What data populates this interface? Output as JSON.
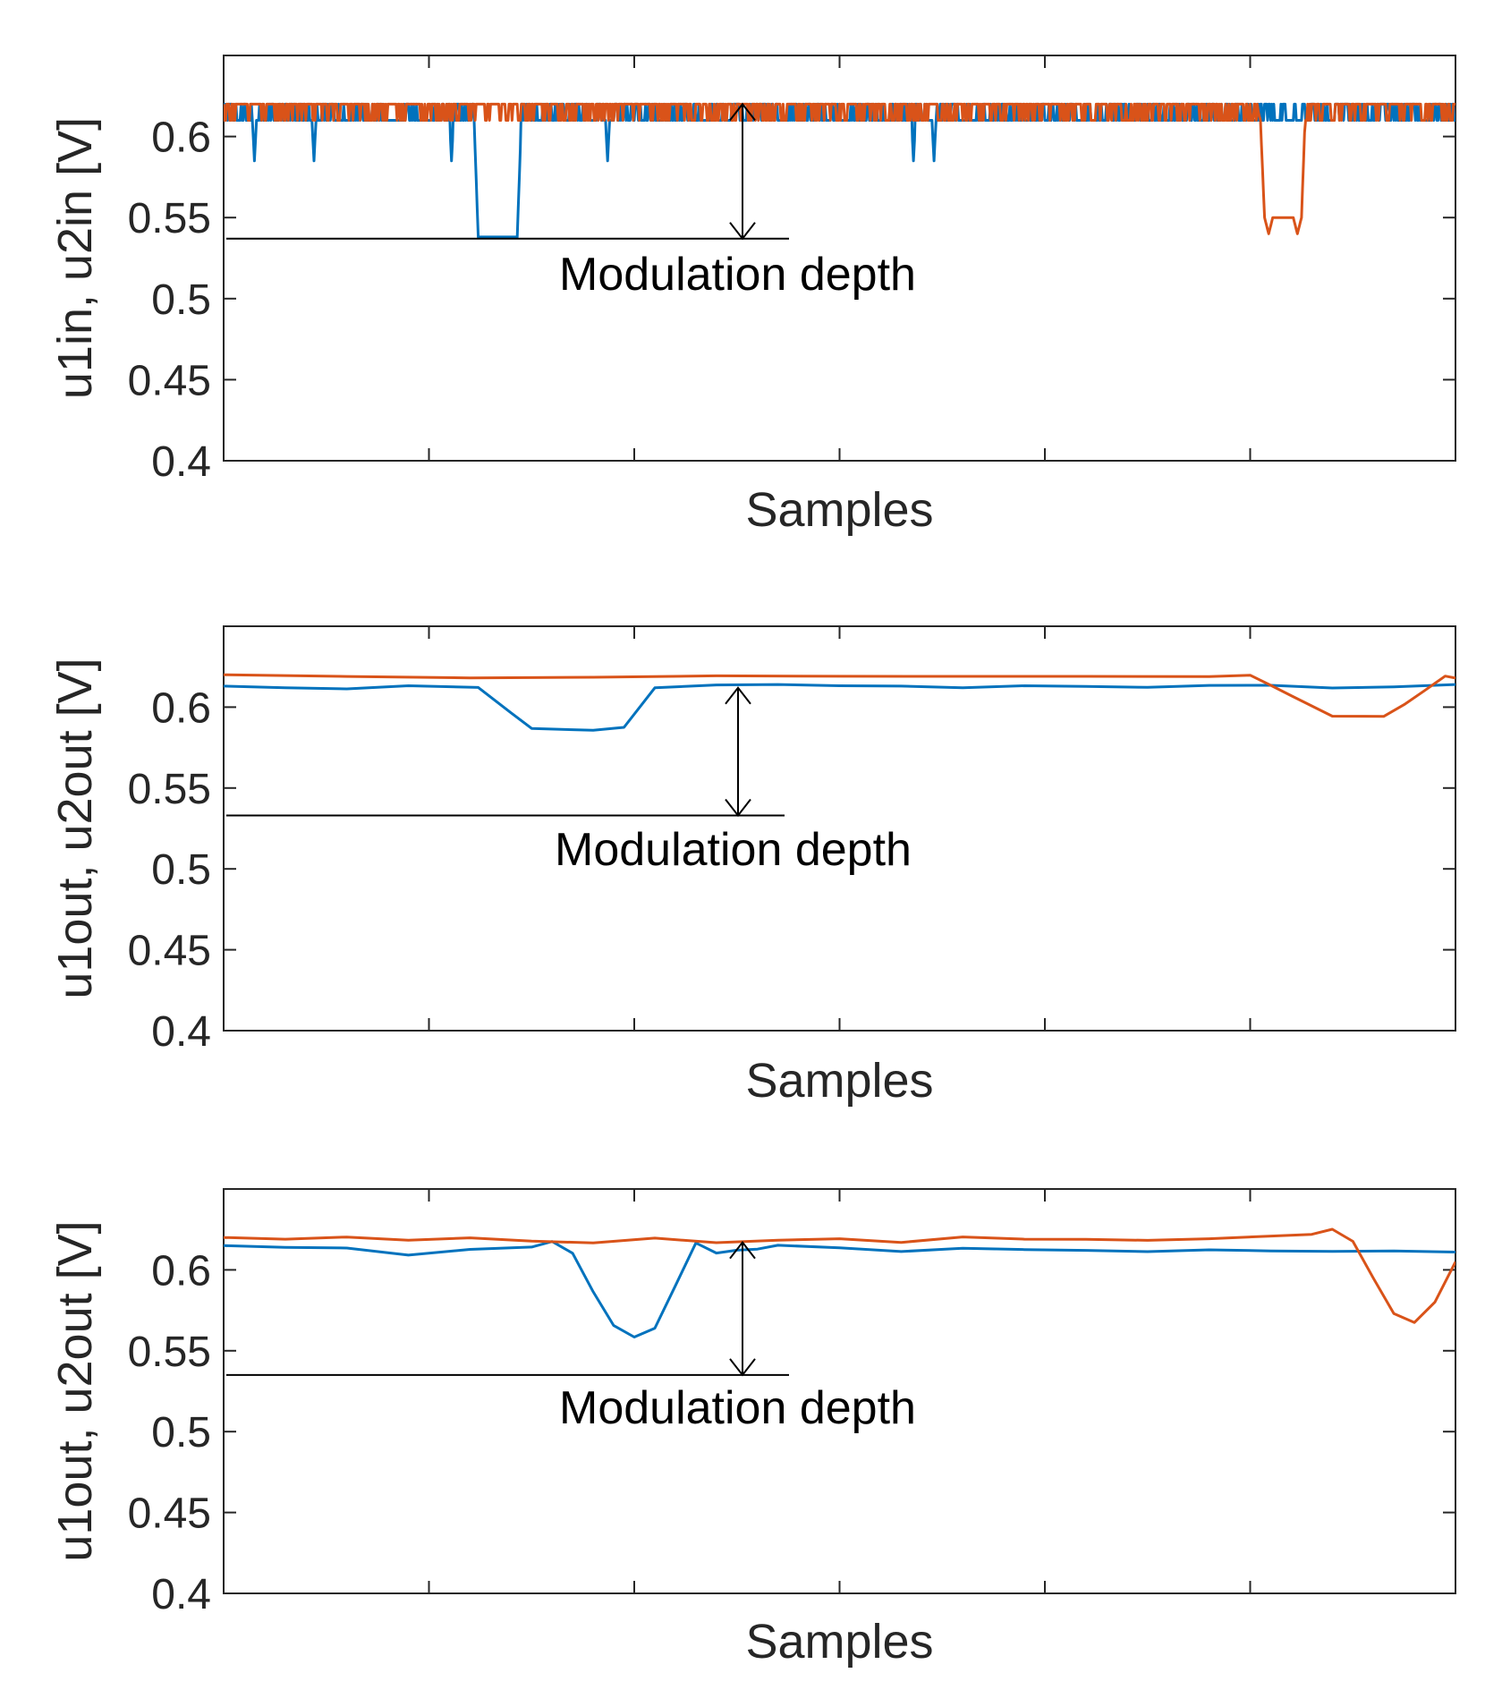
{
  "chart_data": [
    {
      "type": "line",
      "title": "",
      "xlabel": "Samples",
      "ylabel": "u1in, u2in [V]",
      "ylim": [
        0.4,
        0.65
      ],
      "yticks": [
        0.4,
        0.45,
        0.5,
        0.55,
        0.6
      ],
      "ytick_labels": [
        "0.4",
        "0.45",
        "0.5",
        "0.55",
        "0.6"
      ],
      "xlim": [
        0,
        600
      ],
      "xtick_count": 6,
      "grid": false,
      "series": [
        {
          "name": "u1in",
          "color": "#0072BD",
          "style": "digital-noise",
          "x": [
            0,
            14,
            15,
            16,
            43,
            44,
            45,
            110,
            111,
            112,
            122,
            124,
            143,
            145,
            186,
            187,
            188,
            335,
            336,
            337,
            345,
            346,
            347,
            600
          ],
          "y": [
            0.61,
            0.61,
            0.585,
            0.61,
            0.61,
            0.585,
            0.61,
            0.61,
            0.585,
            0.61,
            0.61,
            0.538,
            0.538,
            0.61,
            0.61,
            0.585,
            0.61,
            0.61,
            0.585,
            0.61,
            0.61,
            0.585,
            0.61,
            0.61
          ]
        },
        {
          "name": "u2in",
          "color": "#D95319",
          "style": "digital-noise",
          "x": [
            0,
            503,
            505,
            507,
            509,
            511,
            521,
            523,
            525,
            527,
            600
          ],
          "y": [
            0.62,
            0.62,
            0.61,
            0.55,
            0.54,
            0.55,
            0.55,
            0.54,
            0.55,
            0.62,
            0.62
          ]
        }
      ],
      "annotation": {
        "text": "Modulation depth",
        "level": 0.537,
        "top": 0.62
      }
    },
    {
      "type": "line",
      "title": "",
      "xlabel": "Samples",
      "ylabel": "u1out, u2out [V]",
      "ylim": [
        0.4,
        0.65
      ],
      "yticks": [
        0.4,
        0.45,
        0.5,
        0.55,
        0.6
      ],
      "ytick_labels": [
        "0.4",
        "0.45",
        "0.5",
        "0.55",
        "0.6"
      ],
      "xlim": [
        0,
        600
      ],
      "xtick_count": 6,
      "grid": false,
      "series": [
        {
          "name": "u1out",
          "color": "#0072BD",
          "x": [
            0,
            30,
            60,
            90,
            124,
            140,
            150,
            180,
            195,
            210,
            240,
            270,
            300,
            330,
            360,
            390,
            420,
            450,
            480,
            510,
            540,
            570,
            600
          ],
          "y": [
            0.613,
            0.612,
            0.611,
            0.613,
            0.612,
            0.596,
            0.587,
            0.586,
            0.588,
            0.612,
            0.614,
            0.614,
            0.613,
            0.613,
            0.612,
            0.613,
            0.613,
            0.612,
            0.613,
            0.613,
            0.612,
            0.613,
            0.614
          ]
        },
        {
          "name": "u2out",
          "color": "#D95319",
          "x": [
            0,
            60,
            120,
            180,
            240,
            300,
            360,
            420,
            480,
            500,
            510,
            520,
            540,
            565,
            575,
            585,
            595,
            600
          ],
          "y": [
            0.62,
            0.619,
            0.618,
            0.618,
            0.619,
            0.619,
            0.619,
            0.619,
            0.619,
            0.62,
            0.613,
            0.607,
            0.594,
            0.594,
            0.602,
            0.61,
            0.619,
            0.618
          ]
        }
      ],
      "annotation": {
        "text": "Modulation depth",
        "level": 0.533,
        "top": 0.612
      }
    },
    {
      "type": "line",
      "title": "",
      "xlabel": "Samples",
      "ylabel": "u1out, u2out [V]",
      "ylim": [
        0.4,
        0.65
      ],
      "yticks": [
        0.4,
        0.45,
        0.5,
        0.55,
        0.6
      ],
      "ytick_labels": [
        "0.4",
        "0.45",
        "0.5",
        "0.55",
        "0.6"
      ],
      "xlim": [
        0,
        600
      ],
      "xtick_count": 6,
      "grid": false,
      "series": [
        {
          "name": "u1out",
          "color": "#0072BD",
          "x": [
            0,
            30,
            60,
            90,
            120,
            150,
            160,
            170,
            180,
            190,
            200,
            210,
            220,
            230,
            240,
            250,
            260,
            270,
            300,
            330,
            360,
            390,
            420,
            450,
            480,
            510,
            540,
            570,
            600
          ],
          "y": [
            0.615,
            0.614,
            0.613,
            0.609,
            0.613,
            0.614,
            0.618,
            0.61,
            0.586,
            0.566,
            0.558,
            0.564,
            0.59,
            0.617,
            0.61,
            0.612,
            0.613,
            0.615,
            0.614,
            0.611,
            0.613,
            0.613,
            0.612,
            0.611,
            0.612,
            0.612,
            0.611,
            0.612,
            0.611
          ]
        },
        {
          "name": "u2out",
          "color": "#D95319",
          "x": [
            0,
            30,
            60,
            90,
            120,
            150,
            180,
            210,
            240,
            270,
            300,
            330,
            360,
            390,
            420,
            450,
            480,
            530,
            540,
            550,
            560,
            570,
            580,
            590,
            600
          ],
          "y": [
            0.62,
            0.619,
            0.62,
            0.618,
            0.62,
            0.618,
            0.617,
            0.62,
            0.617,
            0.618,
            0.619,
            0.617,
            0.62,
            0.619,
            0.619,
            0.618,
            0.619,
            0.622,
            0.625,
            0.618,
            0.595,
            0.573,
            0.567,
            0.58,
            0.605
          ]
        }
      ],
      "annotation": {
        "text": "Modulation depth",
        "level": 0.535,
        "top": 0.617
      }
    }
  ]
}
